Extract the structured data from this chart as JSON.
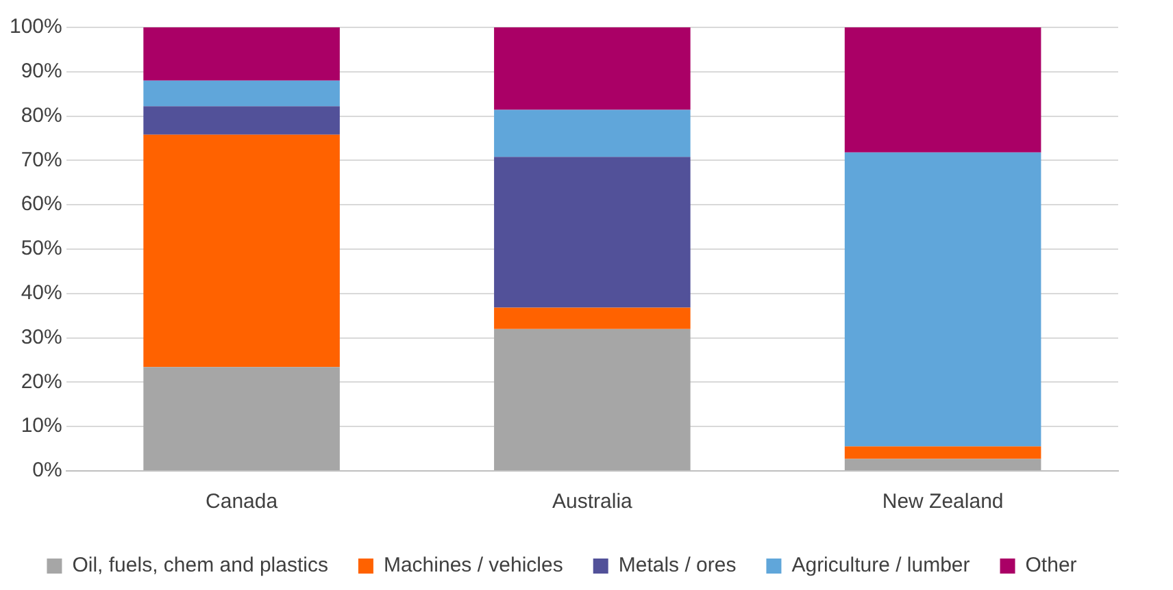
{
  "chart_data": {
    "type": "bar",
    "stacked": true,
    "categories": [
      "Canada",
      "Australia",
      "New Zealand"
    ],
    "series": [
      {
        "name": "Oil, fuels, chem and plastics",
        "color": "#a6a6a6",
        "values": [
          23.4,
          32,
          2.7
        ]
      },
      {
        "name": "Machines / vehicles",
        "color": "#ff6200",
        "values": [
          52.4,
          4.8,
          2.8
        ]
      },
      {
        "name": "Metals / ores",
        "color": "#525199",
        "values": [
          6.4,
          34,
          0
        ]
      },
      {
        "name": "Agriculture / lumber",
        "color": "#60a6da",
        "values": [
          5.8,
          10.6,
          66.3
        ]
      },
      {
        "name": "Other",
        "color": "#aa0066",
        "values": [
          12,
          18.6,
          28.2
        ]
      }
    ],
    "ylim": [
      0,
      100
    ],
    "yticks": [
      {
        "value": 0,
        "label": "0%"
      },
      {
        "value": 10,
        "label": "10%"
      },
      {
        "value": 20,
        "label": "20%"
      },
      {
        "value": 30,
        "label": "30%"
      },
      {
        "value": 40,
        "label": "40%"
      },
      {
        "value": 50,
        "label": "50%"
      },
      {
        "value": 60,
        "label": "60%"
      },
      {
        "value": 70,
        "label": "70%"
      },
      {
        "value": 80,
        "label": "80%"
      },
      {
        "value": 90,
        "label": "90%"
      },
      {
        "value": 100,
        "label": "100%"
      }
    ],
    "grid": "y",
    "legend": "bottom"
  }
}
